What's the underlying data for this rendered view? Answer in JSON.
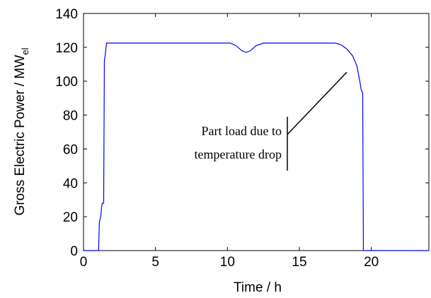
{
  "chart_data": {
    "type": "line",
    "xlabel": "Time / h",
    "ylabel": "Gross Electric Power / MW",
    "ylabel_subscript": "el",
    "x": [
      0,
      1.05,
      1.1,
      1.2,
      1.25,
      1.3,
      1.4,
      1.45,
      1.5,
      1.6,
      10.2,
      10.6,
      11,
      11.3,
      11.6,
      12,
      12.5,
      17.5,
      17.9,
      18.3,
      18.7,
      19,
      19.2,
      19.3,
      19.4,
      19.45,
      24
    ],
    "series": [
      {
        "color": "#0000ff",
        "values": [
          0,
          0,
          17,
          20,
          25,
          28,
          28,
          112,
          115,
          122.5,
          122.5,
          121,
          118,
          117,
          118,
          121,
          122.5,
          122.5,
          121.5,
          119,
          115,
          109,
          100,
          95,
          93,
          0,
          0
        ]
      }
    ],
    "xlim": [
      0,
      24
    ],
    "xticks": [
      0,
      5,
      10,
      15,
      20
    ],
    "ylim": [
      0,
      140
    ],
    "yticks": [
      0,
      20,
      40,
      60,
      80,
      100,
      120,
      140
    ],
    "annotation": [
      "Part load due to",
      "temperature drop"
    ]
  }
}
